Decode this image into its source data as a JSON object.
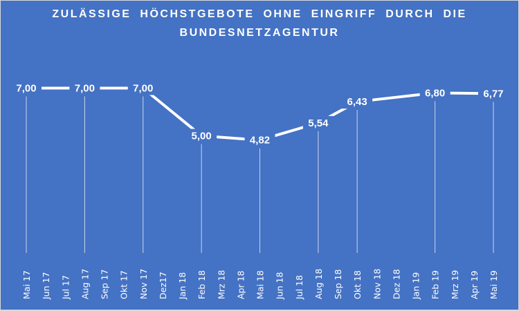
{
  "chart_data": {
    "type": "line",
    "title": "ZULÄSSIGE HÖCHSTGEBOTE OHNE EINGRIFF DURCH DIE BUNDESNETZAGENTUR",
    "categories": [
      "Mai 17",
      "Jun 17",
      "Jul 17",
      "Aug 17",
      "Sep 17",
      "Okt 17",
      "Nov 17",
      "Dez17",
      "Jan 18",
      "Feb 18",
      "Mrz 18",
      "Apr 18",
      "Mai 18",
      "Jun 18",
      "Jul 18",
      "Aug 18",
      "Sep 18",
      "Okt 18",
      "Nov 18",
      "Dez 18",
      "Jan 19",
      "Feb 19",
      "Mrz 19",
      "Apr 19",
      "Mai 19"
    ],
    "points": [
      {
        "x": "Mai 17",
        "y": 7.0,
        "label": "7,00"
      },
      {
        "x": "Aug 17",
        "y": 7.0,
        "label": "7,00"
      },
      {
        "x": "Nov 17",
        "y": 7.0,
        "label": "7,00"
      },
      {
        "x": "Feb 18",
        "y": 5.0,
        "label": "5,00"
      },
      {
        "x": "Mai 18",
        "y": 4.82,
        "label": "4,82"
      },
      {
        "x": "Aug 18",
        "y": 5.54,
        "label": "5,54"
      },
      {
        "x": "Okt 18",
        "y": 6.43,
        "label": "6,43"
      },
      {
        "x": "Feb 19",
        "y": 6.8,
        "label": "6,80"
      },
      {
        "x": "Mai 19",
        "y": 6.77,
        "label": "6,77"
      }
    ],
    "ylim": [
      0,
      7.5
    ],
    "grid": false,
    "drop_lines": true,
    "colors": {
      "background": "#4472C4",
      "line": "#FFFFFF"
    }
  }
}
